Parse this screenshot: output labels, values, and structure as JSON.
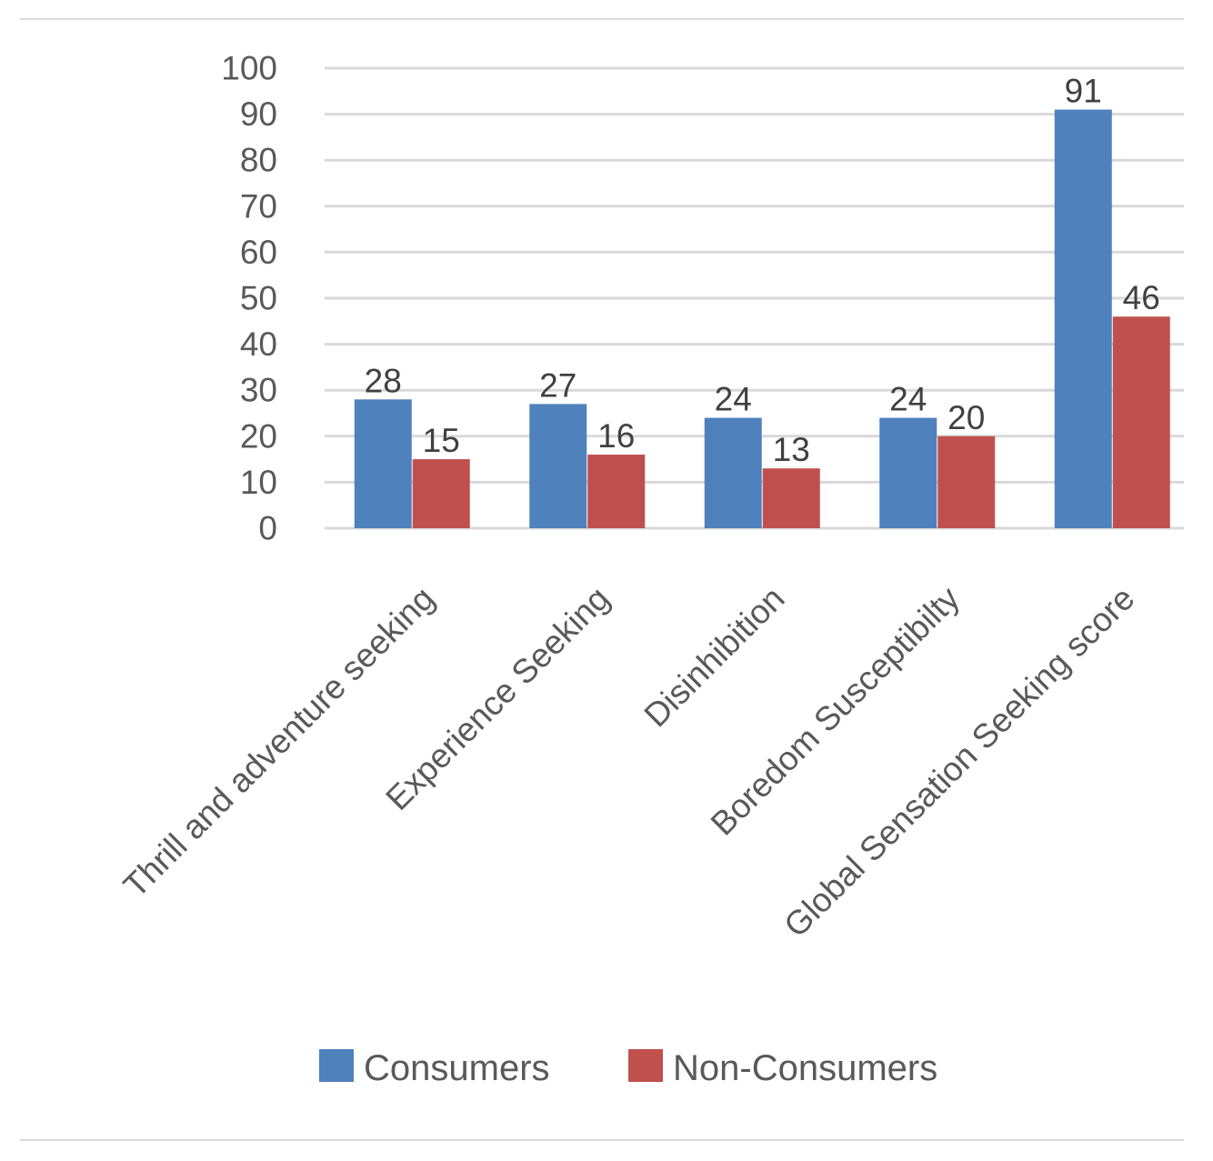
{
  "chart_data": {
    "type": "bar",
    "title": "",
    "xlabel": "",
    "ylabel": "",
    "categories": [
      "Thrill and adventure seeking",
      "Experience Seeking",
      "Disinhibition",
      "Boredom Susceptibilty",
      "Global Sensation Seeking score"
    ],
    "series": [
      {
        "name": "Consumers",
        "values": [
          28,
          27,
          24,
          24,
          91
        ],
        "color": "#4f81bd"
      },
      {
        "name": "Non-Consumers",
        "values": [
          15,
          16,
          13,
          20,
          46
        ],
        "color": "#c0504d"
      }
    ],
    "ylim": [
      0,
      100
    ],
    "yticks": [
      0,
      10,
      20,
      30,
      40,
      50,
      60,
      70,
      80,
      90,
      100
    ],
    "grid": true,
    "data_labels": true,
    "legend_position": "bottom"
  }
}
